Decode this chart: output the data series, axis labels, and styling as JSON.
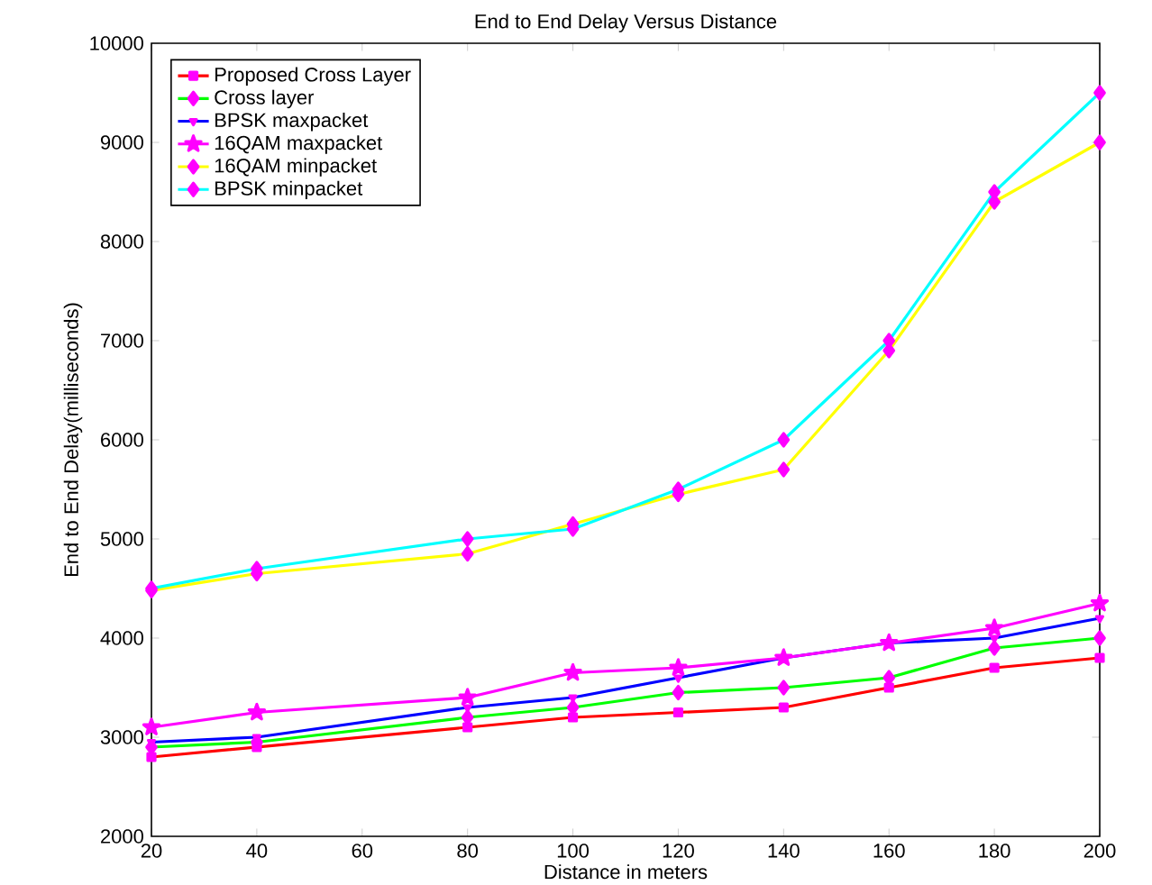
{
  "chart_data": {
    "type": "line",
    "title": "End to End Delay Versus Distance",
    "xlabel": "Distance in meters",
    "ylabel": "End to End Delay(milliseconds)",
    "x": [
      20,
      40,
      80,
      100,
      120,
      140,
      160,
      180,
      200
    ],
    "series": [
      {
        "name": "Proposed Cross Layer",
        "color": "#ff0000",
        "marker": "square",
        "values": [
          2800,
          2900,
          3100,
          3200,
          3250,
          3300,
          3500,
          3700,
          3800
        ]
      },
      {
        "name": "Cross layer",
        "color": "#00ff00",
        "marker": "diamond",
        "values": [
          2900,
          2950,
          3200,
          3300,
          3450,
          3500,
          3600,
          3900,
          4000
        ]
      },
      {
        "name": "BPSK maxpacket",
        "color": "#0000ff",
        "marker": "triangle",
        "values": [
          2950,
          3000,
          3300,
          3400,
          3600,
          3800,
          3950,
          4000,
          4200
        ]
      },
      {
        "name": "16QAM maxpacket",
        "color": "#ff00ff",
        "marker": "star",
        "values": [
          3100,
          3250,
          3400,
          3650,
          3700,
          3800,
          3950,
          4100,
          4350
        ]
      },
      {
        "name": "16QAM minpacket",
        "color": "#ffff00",
        "marker": "diamond",
        "values": [
          4480,
          4650,
          4850,
          5150,
          5450,
          5700,
          6900,
          8400,
          9000
        ]
      },
      {
        "name": "BPSK minpacket",
        "color": "#00ffff",
        "marker": "diamond",
        "values": [
          4500,
          4700,
          5000,
          5100,
          5500,
          6000,
          7000,
          8500,
          9500
        ]
      }
    ],
    "xlim": [
      20,
      200
    ],
    "xticks": [
      20,
      40,
      60,
      80,
      100,
      120,
      140,
      160,
      180,
      200
    ],
    "ylim": [
      2000,
      10000
    ],
    "yticks": [
      2000,
      3000,
      4000,
      5000,
      6000,
      7000,
      8000,
      9000,
      10000
    ],
    "grid": false,
    "legend": "top left",
    "line_style": "solid"
  }
}
